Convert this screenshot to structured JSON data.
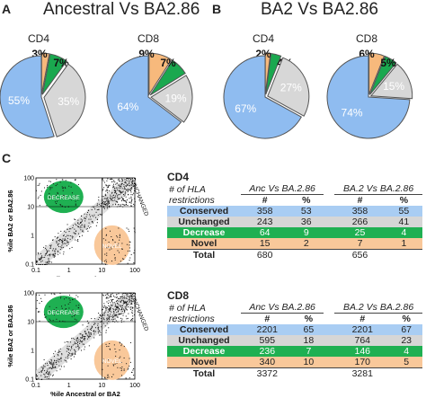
{
  "panels": {
    "a": {
      "letter": "A",
      "title": "Ancestral Vs BA2.86"
    },
    "b": {
      "letter": "B",
      "title": "BA2 Vs BA2.86"
    },
    "c": {
      "letter": "C"
    }
  },
  "colors": {
    "conserved": "#a9cdf3",
    "unchanged": "#d6d6d6",
    "decrease": "#1fb052",
    "novel": "#f9c89a",
    "pie_blue": "#8fbcf0",
    "pie_gray": "#d7d7d7",
    "pie_green": "#1aa84f",
    "pie_orange": "#f7b97c"
  },
  "chart_data": [
    {
      "type": "pie",
      "title": "CD4",
      "panel": "A",
      "slices": [
        {
          "name": "Conserved",
          "value": 55,
          "label": "55%"
        },
        {
          "name": "Unchanged",
          "value": 35,
          "label": "35%"
        },
        {
          "name": "Decrease",
          "value": 7,
          "label": "7%"
        },
        {
          "name": "Novel",
          "value": 3,
          "label": "3%"
        }
      ]
    },
    {
      "type": "pie",
      "title": "CD8",
      "panel": "A",
      "slices": [
        {
          "name": "Conserved",
          "value": 64,
          "label": "64%"
        },
        {
          "name": "Unchanged",
          "value": 19,
          "label": "19%"
        },
        {
          "name": "Decrease",
          "value": 7,
          "label": "7%"
        },
        {
          "name": "Novel",
          "value": 9,
          "label": "9%"
        }
      ]
    },
    {
      "type": "pie",
      "title": "CD4",
      "panel": "B",
      "slices": [
        {
          "name": "Conserved",
          "value": 67,
          "label": "67%"
        },
        {
          "name": "Unchanged",
          "value": 27,
          "label": "27%"
        },
        {
          "name": "Decrease",
          "value": 4,
          "label": "4%"
        },
        {
          "name": "Novel",
          "value": 2,
          "label": "2%"
        }
      ]
    },
    {
      "type": "pie",
      "title": "CD8",
      "panel": "B",
      "slices": [
        {
          "name": "Conserved",
          "value": 74,
          "label": "74%"
        },
        {
          "name": "Unchanged",
          "value": 15,
          "label": "15%"
        },
        {
          "name": "Decrease",
          "value": 5,
          "label": "5%"
        },
        {
          "name": "Novel",
          "value": 6,
          "label": "6%"
        }
      ]
    },
    {
      "type": "scatter",
      "panel": "C-CD4",
      "xlabel": "%ile Ancestral or BA2",
      "ylabel": "%ile BA2 or BA2.86",
      "scale": "log",
      "xlim": [
        0.1,
        100
      ],
      "ylim": [
        0.1,
        100
      ],
      "x_ticks": [
        "0.1",
        "1",
        "10",
        "100"
      ],
      "y_ticks": [
        "0.1",
        "1",
        "10",
        "100"
      ],
      "region_labels": [
        "DECREASE",
        "UNCHANGED",
        "NOVEL"
      ]
    },
    {
      "type": "scatter",
      "panel": "C-CD8",
      "xlabel": "%ile Ancestral or BA2",
      "ylabel": "%ile BA2 or BA2.86",
      "scale": "log",
      "xlim": [
        0.1,
        100
      ],
      "ylim": [
        0.1,
        100
      ],
      "x_ticks": [
        "0.1",
        "1",
        "10",
        "100"
      ],
      "y_ticks": [
        "0.1",
        "1",
        "10",
        "100"
      ],
      "region_labels": [
        "DECREASE",
        "UNCHANGED",
        "NOVEL"
      ]
    },
    {
      "type": "table",
      "title": "CD4",
      "header": [
        "# of HLA restrictions",
        "Anc Vs BA.2.86",
        "BA.2 Vs BA.2.86"
      ],
      "subheader": [
        "#",
        "%",
        "#",
        "%"
      ],
      "rows": [
        {
          "label": "Conserved",
          "anc_n": "358",
          "anc_p": "53",
          "ba2_n": "358",
          "ba2_p": "55"
        },
        {
          "label": "Unchanged",
          "anc_n": "243",
          "anc_p": "36",
          "ba2_n": "266",
          "ba2_p": "41"
        },
        {
          "label": "Decrease",
          "anc_n": "64",
          "anc_p": "9",
          "ba2_n": "25",
          "ba2_p": "4"
        },
        {
          "label": "Novel",
          "anc_n": "15",
          "anc_p": "2",
          "ba2_n": "7",
          "ba2_p": "1"
        }
      ],
      "total": {
        "label": "Total",
        "anc_n": "680",
        "ba2_n": "656"
      }
    },
    {
      "type": "table",
      "title": "CD8",
      "header": [
        "# of HLA restrictions",
        "Anc Vs BA.2.86",
        "BA.2 Vs BA.2.86"
      ],
      "subheader": [
        "#",
        "%",
        "#",
        "%"
      ],
      "rows": [
        {
          "label": "Conserved",
          "anc_n": "2201",
          "anc_p": "65",
          "ba2_n": "2201",
          "ba2_p": "67"
        },
        {
          "label": "Unchanged",
          "anc_n": "595",
          "anc_p": "18",
          "ba2_n": "764",
          "ba2_p": "23"
        },
        {
          "label": "Decrease",
          "anc_n": "236",
          "anc_p": "7",
          "ba2_n": "146",
          "ba2_p": "4"
        },
        {
          "label": "Novel",
          "anc_n": "340",
          "anc_p": "10",
          "ba2_n": "170",
          "ba2_p": "5"
        }
      ],
      "total": {
        "label": "Total",
        "anc_n": "3372",
        "ba2_n": "3281"
      }
    }
  ]
}
